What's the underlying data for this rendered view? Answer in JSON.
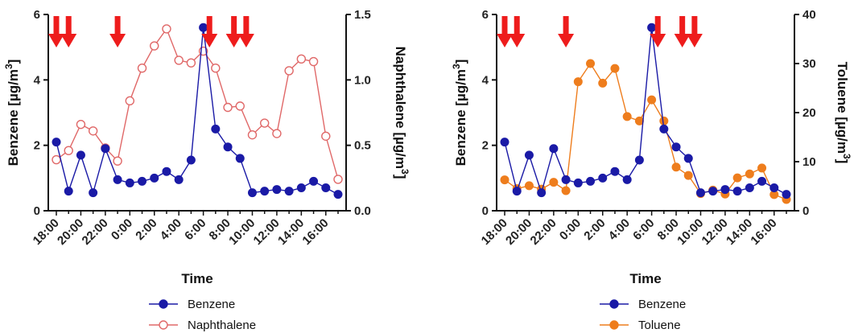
{
  "chart_data": [
    {
      "type": "line",
      "x": [
        "18:00",
        "19:00",
        "20:00",
        "21:00",
        "22:00",
        "23:00",
        "0:00",
        "1:00",
        "2:00",
        "3:00",
        "4:00",
        "5:00",
        "6:00",
        "7:00",
        "8:00",
        "9:00",
        "10:00",
        "11:00",
        "12:00",
        "13:00",
        "14:00",
        "15:00",
        "16:00",
        "17:00"
      ],
      "x_tick_labels": [
        "18:00",
        "20:00",
        "22:00",
        "0:00",
        "2:00",
        "4:00",
        "6:00",
        "8:00",
        "10:00",
        "12:00",
        "14:00",
        "16:00"
      ],
      "xlabel": "Time",
      "ylabel": "Benzene [µg/m³]",
      "ylabel_main": "Benzene [",
      "ylabel_unit": "µg/m",
      "ylabel_sup": "3",
      "ylabel_close": "]",
      "y2label": "Naphthalene [µg/m³]",
      "y2label_main": "Naphthalene [",
      "y2label_unit": "µg/m",
      "y2label_sup": "3",
      "y2label_close": "]",
      "ylim": [
        0,
        6
      ],
      "y_ticks": [
        "0",
        "2",
        "4",
        "6"
      ],
      "y2lim": [
        0,
        1.5
      ],
      "y2_ticks": [
        "0.0",
        "0.5",
        "1.0",
        "1.5"
      ],
      "arrows_at": [
        "18:00",
        "19:00",
        "23:00",
        "6:30",
        "8:30",
        "9:30"
      ],
      "series": [
        {
          "name": "Benzene",
          "axis": "left",
          "color": "#1a1aa6",
          "marker": "filled",
          "values": [
            2.1,
            0.6,
            1.7,
            0.55,
            1.9,
            0.95,
            0.85,
            0.9,
            1.0,
            1.2,
            0.95,
            1.55,
            5.6,
            2.5,
            1.95,
            1.6,
            0.55,
            0.6,
            0.65,
            0.6,
            0.7,
            0.9,
            0.7,
            0.5
          ]
        },
        {
          "name": "Naphthalene",
          "axis": "right",
          "color": "#e06868",
          "marker": "open",
          "values": [
            0.39,
            0.46,
            0.66,
            0.61,
            0.48,
            0.38,
            0.84,
            1.09,
            1.26,
            1.39,
            1.15,
            1.13,
            1.22,
            1.09,
            0.79,
            0.8,
            0.58,
            0.67,
            0.59,
            1.07,
            1.16,
            1.14,
            0.57,
            0.24
          ]
        }
      ],
      "legend_position": "bottom"
    },
    {
      "type": "line",
      "x": [
        "18:00",
        "19:00",
        "20:00",
        "21:00",
        "22:00",
        "23:00",
        "0:00",
        "1:00",
        "2:00",
        "3:00",
        "4:00",
        "5:00",
        "6:00",
        "7:00",
        "8:00",
        "9:00",
        "10:00",
        "11:00",
        "12:00",
        "13:00",
        "14:00",
        "15:00",
        "16:00",
        "17:00"
      ],
      "x_tick_labels": [
        "18:00",
        "20:00",
        "22:00",
        "0:00",
        "2:00",
        "4:00",
        "6:00",
        "8:00",
        "10:00",
        "12:00",
        "14:00",
        "16:00"
      ],
      "xlabel": "Time",
      "ylabel": "Benzene [µg/m³]",
      "ylabel_main": "Benzene [",
      "ylabel_unit": "µg/m",
      "ylabel_sup": "3",
      "ylabel_close": "]",
      "y2label": "Toluene [µg/m³]",
      "y2label_main": "Toluene [",
      "y2label_unit": "µg/m",
      "y2label_sup": "3",
      "y2label_close": "]",
      "ylim": [
        0,
        6
      ],
      "y_ticks": [
        "0",
        "2",
        "4",
        "6"
      ],
      "y2lim": [
        0,
        40
      ],
      "y2_ticks": [
        "0",
        "10",
        "20",
        "30",
        "40"
      ],
      "arrows_at": [
        "18:00",
        "19:00",
        "23:00",
        "6:30",
        "8:30",
        "9:30"
      ],
      "series": [
        {
          "name": "Benzene",
          "axis": "left",
          "color": "#1a1aa6",
          "marker": "filled",
          "values": [
            2.1,
            0.6,
            1.7,
            0.55,
            1.9,
            0.95,
            0.85,
            0.9,
            1.0,
            1.2,
            0.95,
            1.55,
            5.6,
            2.5,
            1.95,
            1.6,
            0.55,
            0.6,
            0.65,
            0.6,
            0.7,
            0.9,
            0.7,
            0.5
          ]
        },
        {
          "name": "Toluene",
          "axis": "right",
          "color": "#ee7d1d",
          "marker": "filled",
          "values": [
            6.3,
            4.5,
            5.1,
            4.4,
            5.8,
            4.1,
            26.3,
            30.0,
            26.0,
            29.0,
            19.2,
            18.3,
            22.6,
            18.3,
            8.9,
            7.2,
            3.5,
            4.2,
            3.4,
            6.7,
            7.5,
            8.7,
            3.3,
            2.3
          ]
        }
      ],
      "legend_position": "bottom"
    }
  ]
}
